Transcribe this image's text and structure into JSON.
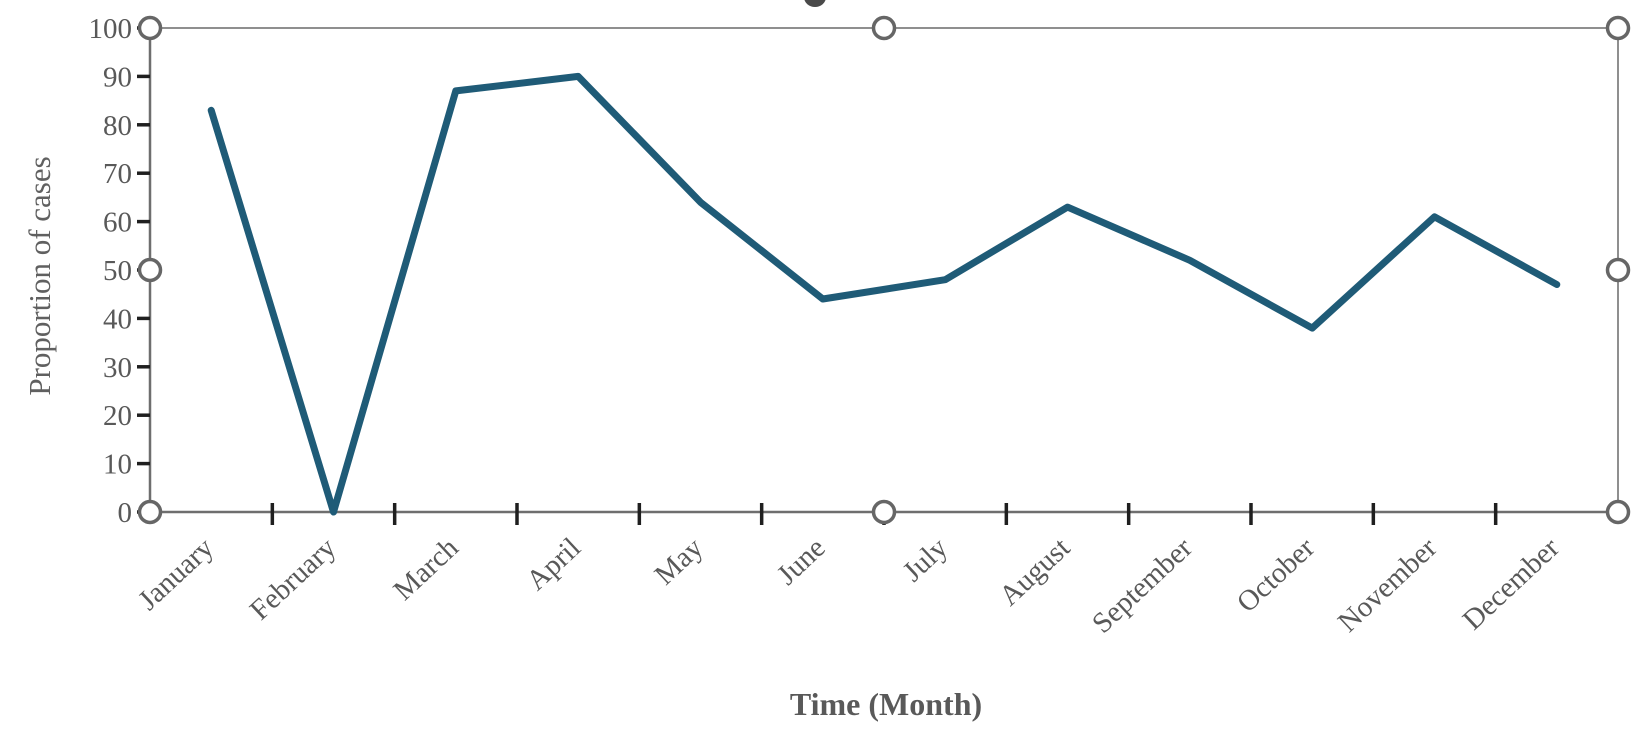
{
  "chart_data": {
    "type": "line",
    "title": "",
    "annotations": [
      "partial glyph of chart title cut off at top edge of screenshot"
    ],
    "categories": [
      "January",
      "February",
      "March",
      "April",
      "May",
      "June",
      "July",
      "August",
      "September",
      "October",
      "November",
      "December"
    ],
    "values": [
      83,
      0,
      87,
      90,
      64,
      44,
      48,
      63,
      52,
      38,
      61,
      47
    ],
    "xlabel": "Time (Month)",
    "ylabel": "Proportion of cases",
    "ylim": [
      0,
      100
    ],
    "ytick_step": 10,
    "ytick_labels": [
      "0",
      "10",
      "20",
      "30",
      "40",
      "50",
      "60",
      "70",
      "80",
      "90",
      "100"
    ],
    "grid": false,
    "legend_position": "none",
    "colors": {
      "series_line": "#1f5b77",
      "axis_line": "#6e6e6e",
      "plot_border": "#8f8f8f",
      "tick_mark": "#1f1f1f",
      "label_text": "#595959",
      "handle_ring": "#666666",
      "handle_fill": "#ffffff",
      "title_fragment": "#4a4a4a"
    }
  },
  "selection": {
    "object_selected": true,
    "handle_positions": [
      "top-left",
      "top-middle",
      "top-right",
      "middle-left",
      "middle-right",
      "bottom-left",
      "bottom-middle",
      "bottom-right"
    ]
  }
}
